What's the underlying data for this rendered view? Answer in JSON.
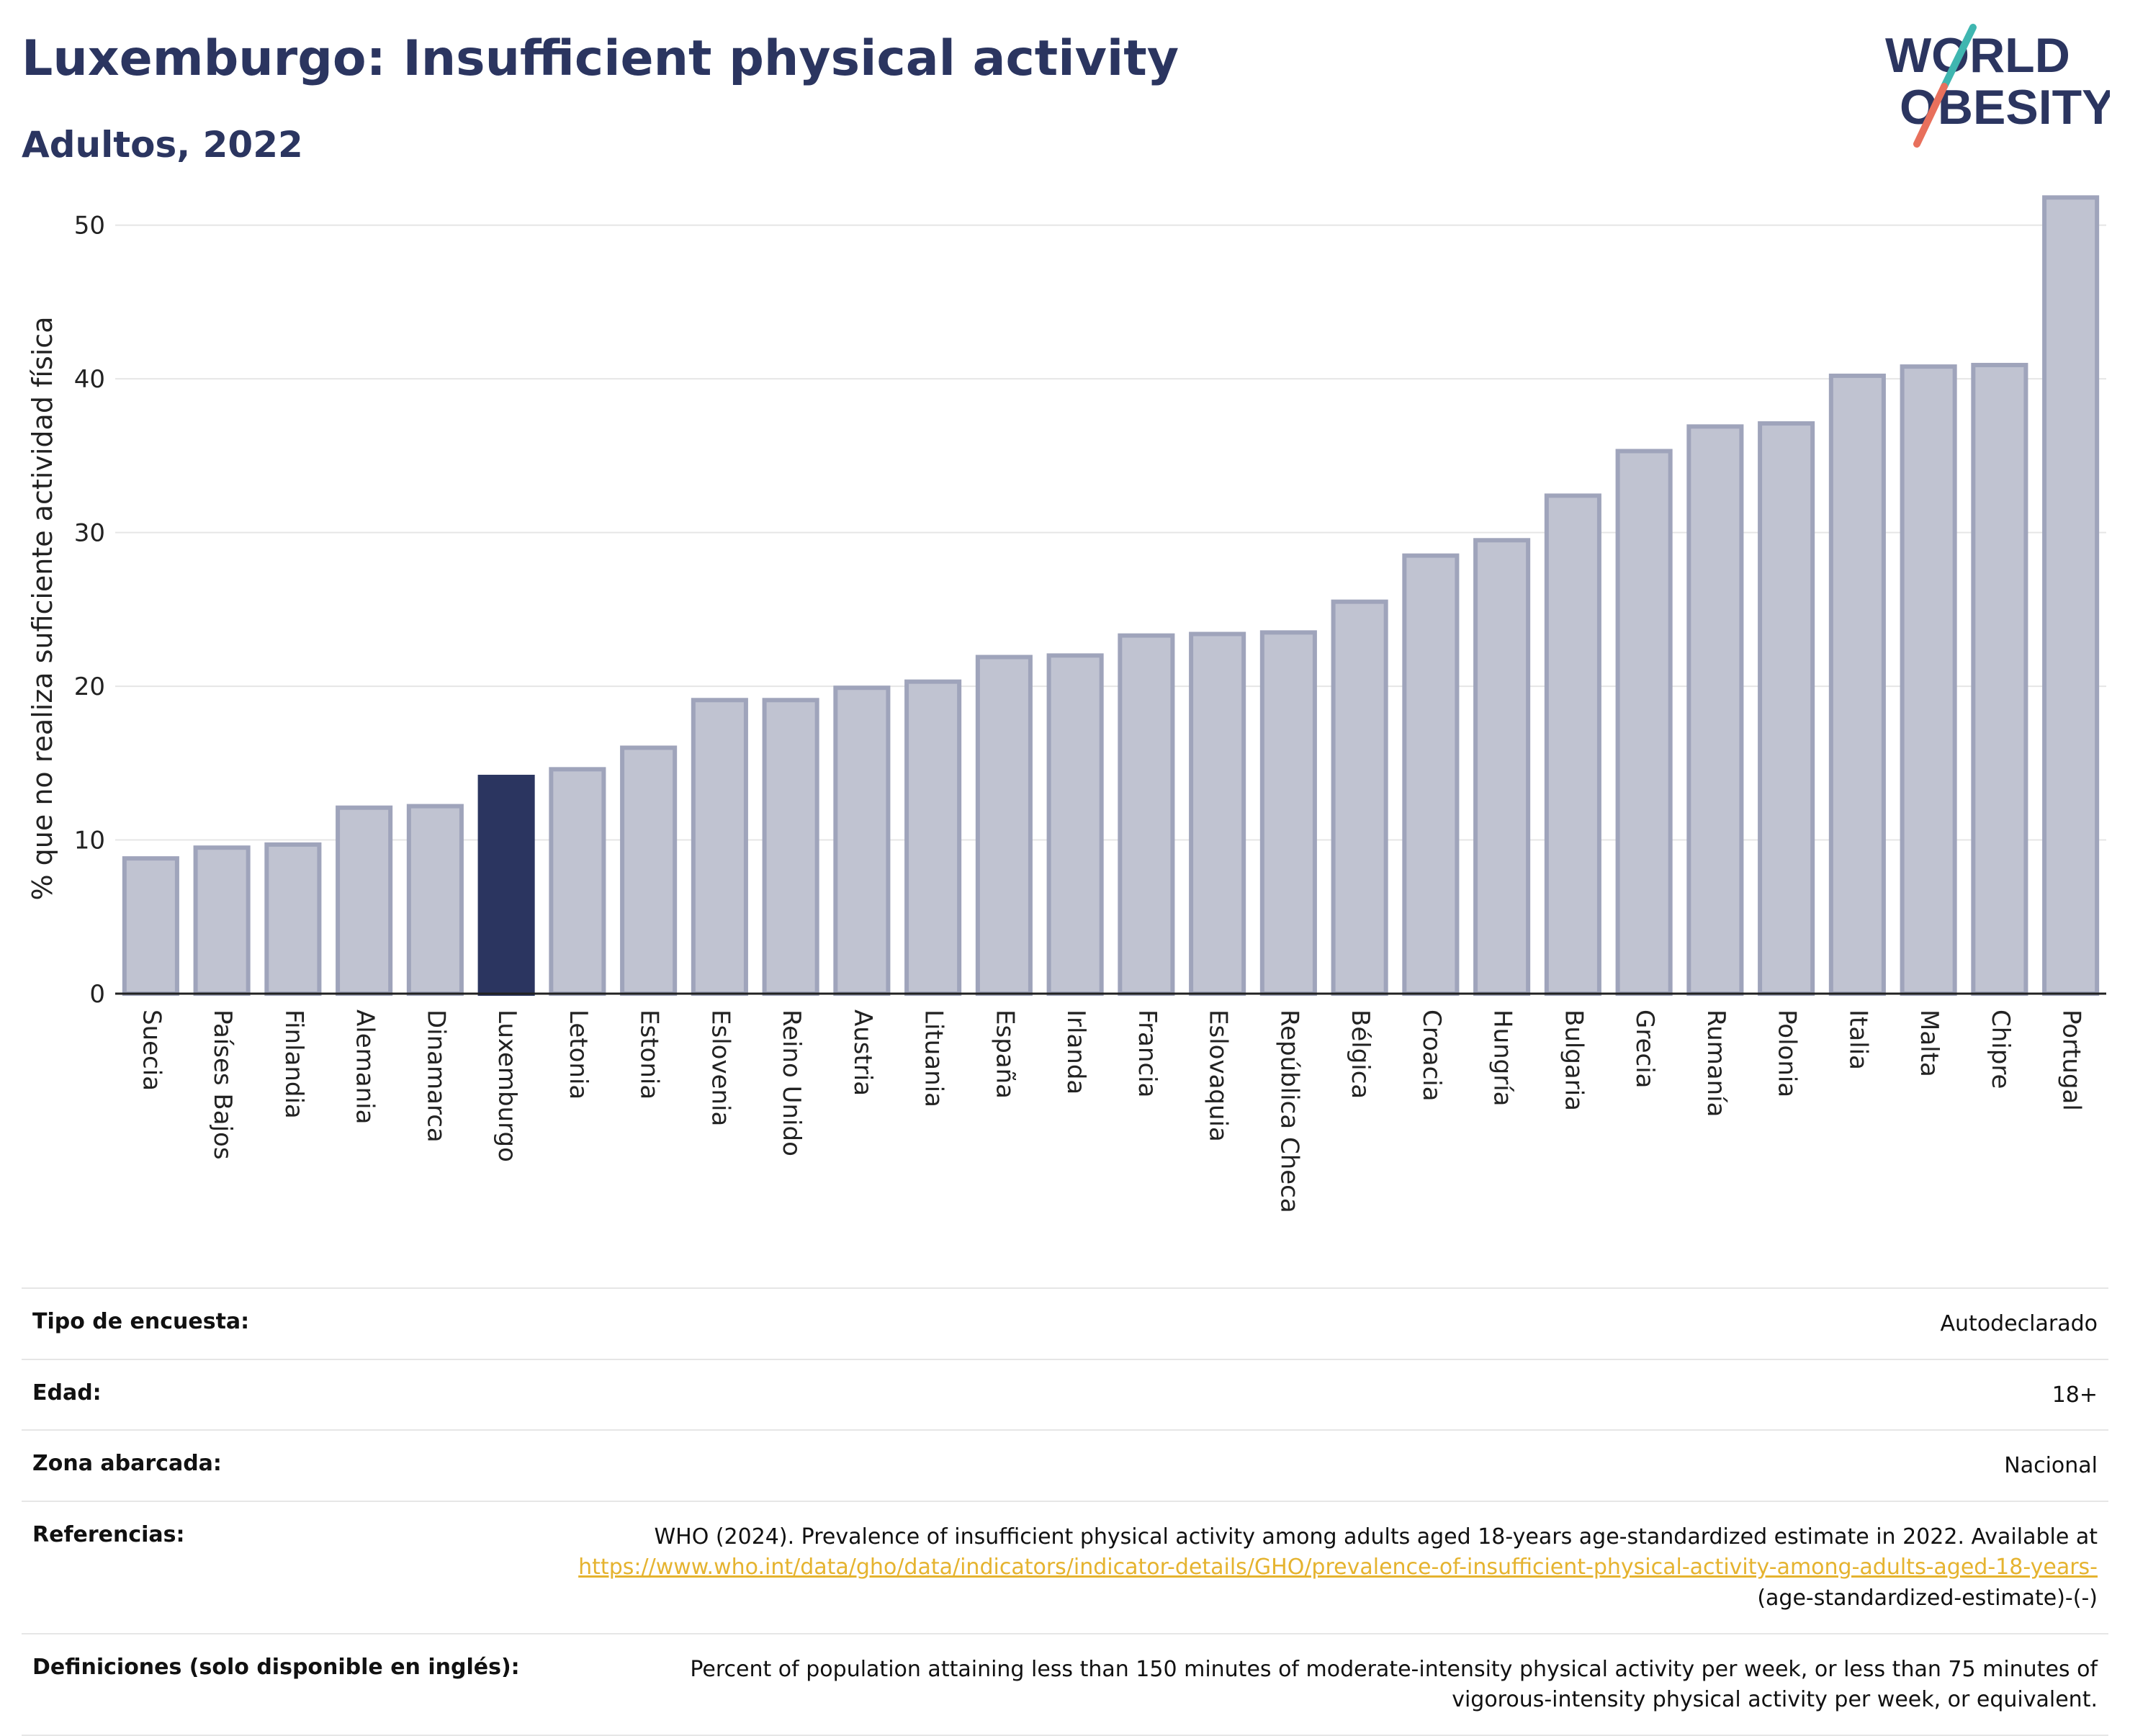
{
  "header": {
    "title": "Luxemburgo: Insufficient physical activity",
    "subtitle": "Adultos, 2022"
  },
  "logo": {
    "line1": "WORLD",
    "line2": "OBESITY",
    "colors": {
      "text": "#2b3560",
      "slash_top": "#3fb6b0",
      "slash_bottom": "#e8705c"
    }
  },
  "chart_data": {
    "type": "bar",
    "title": "Luxemburgo: Insufficient physical activity",
    "subtitle": "Adultos, 2022",
    "xlabel": "",
    "ylabel": "% que no realiza suficiente actividad física",
    "ylim": [
      0,
      52
    ],
    "yticks": [
      0,
      10,
      20,
      30,
      40,
      50
    ],
    "grid": true,
    "highlight": "Luxemburgo",
    "colors": {
      "bar": "#c0c3d1",
      "bar_edge": "#9fa4bb",
      "highlight": "#2b3560"
    },
    "categories": [
      "Suecia",
      "Países Bajos",
      "Finlandia",
      "Alemania",
      "Dinamarca",
      "Luxemburgo",
      "Letonia",
      "Estonia",
      "Eslovenia",
      "Reino Unido",
      "Austria",
      "Lituania",
      "España",
      "Irlanda",
      "Francia",
      "Eslovaquia",
      "República Checa",
      "Bélgica",
      "Croacia",
      "Hungría",
      "Bulgaria",
      "Grecia",
      "Rumanía",
      "Polonia",
      "Italia",
      "Malta",
      "Chipre",
      "Portugal"
    ],
    "values": [
      8.8,
      9.5,
      9.7,
      12.1,
      12.2,
      14.1,
      14.6,
      16.0,
      19.1,
      19.1,
      19.9,
      20.3,
      21.9,
      22.0,
      23.3,
      23.4,
      23.5,
      25.5,
      28.5,
      29.5,
      32.4,
      35.3,
      36.9,
      37.1,
      40.2,
      40.8,
      40.9,
      51.8
    ]
  },
  "meta": {
    "rows": [
      {
        "label": "Tipo de encuesta:",
        "value": "Autodeclarado"
      },
      {
        "label": "Edad:",
        "value": "18+"
      },
      {
        "label": "Zona abarcada:",
        "value": "Nacional"
      }
    ],
    "references_label": "Referencias:",
    "references_text": "WHO (2024). Prevalence of insufficient physical activity among adults aged 18-years age-standardized estimate in 2022. Available at",
    "references_link": "https://www.who.int/data/gho/data/indicators/indicator-details/GHO/prevalence-of-insufficient-physical-activity-among-adults-aged-18-years-",
    "references_suffix": "(age-standardized-estimate)-(-)",
    "definitions_label": "Definiciones (solo disponible en inglés):",
    "definitions_text": "Percent of population attaining less than 150 minutes of moderate-intensity physical activity per week, or less than 75 minutes of vigorous-intensity physical activity per week, or equivalent."
  }
}
